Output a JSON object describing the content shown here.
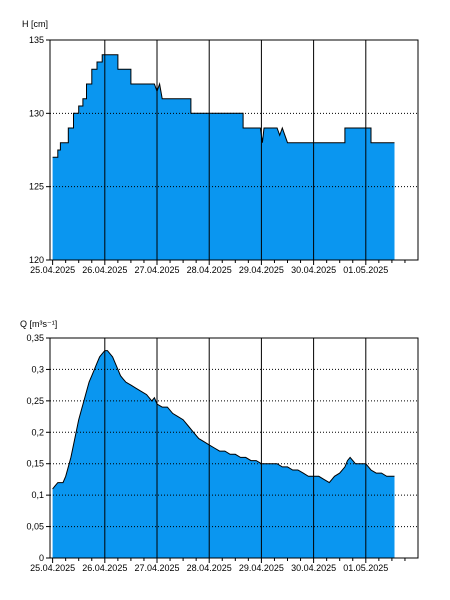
{
  "colors": {
    "fill": "#0a96f0",
    "line": "#000000",
    "grid": "#000000",
    "background": "#ffffff"
  },
  "chart_data": [
    {
      "type": "area",
      "title": "",
      "ylabel": "H [cm]",
      "xlabel": "",
      "x_tick_labels": [
        "25.04.2025",
        "26.04.2025",
        "27.04.2025",
        "28.04.2025",
        "29.04.2025",
        "30.04.2025",
        "01.05.2025"
      ],
      "x_range_days": [
        -0.05,
        7.0
      ],
      "ylim": [
        120,
        135
      ],
      "y_ticks": [
        120,
        125,
        130,
        135
      ],
      "y_tick_labels": [
        "120",
        "125",
        "130",
        "135"
      ],
      "grid": "vertical solid at days, horizontal dotted",
      "series": [
        {
          "x": [
            0,
            0.1,
            0.1,
            0.15,
            0.15,
            0.3,
            0.3,
            0.4,
            0.4,
            0.5,
            0.5,
            0.58,
            0.58,
            0.65,
            0.65,
            0.75,
            0.75,
            0.85,
            0.85,
            0.95,
            0.95,
            1.25,
            1.25,
            1.5,
            1.5,
            1.95,
            2.0,
            2.05,
            2.1,
            2.15,
            2.15,
            2.65,
            2.65,
            3.65,
            3.65,
            3.98,
            4.02,
            4.05,
            4.3,
            4.35,
            4.4,
            4.45,
            4.5,
            4.55,
            4.55,
            5.6,
            5.6,
            6.1,
            6.1,
            6.55
          ],
          "y": [
            127,
            127,
            127.5,
            127.5,
            128,
            128,
            129,
            129,
            130,
            130,
            130.5,
            130.5,
            131,
            131,
            132,
            132,
            133,
            133,
            133.5,
            133.5,
            134,
            134,
            133,
            133,
            132,
            132,
            131.5,
            132,
            131,
            131,
            131,
            131,
            130,
            130,
            129,
            129,
            128,
            129,
            129,
            128.5,
            129,
            128.5,
            128,
            128,
            128,
            128,
            129,
            129,
            128,
            128
          ]
        }
      ]
    },
    {
      "type": "area",
      "title": "",
      "ylabel": "Q [m³s⁻¹]",
      "xlabel": "",
      "x_tick_labels": [
        "25.04.2025",
        "26.04.2025",
        "27.04.2025",
        "28.04.2025",
        "29.04.2025",
        "30.04.2025",
        "01.05.2025"
      ],
      "x_range_days": [
        -0.05,
        7.0
      ],
      "ylim": [
        0,
        0.35
      ],
      "y_ticks": [
        0,
        0.05,
        0.1,
        0.15,
        0.2,
        0.25,
        0.3,
        0.35
      ],
      "y_tick_labels": [
        "0",
        "0,05",
        "0,1",
        "0,15",
        "0,2",
        "0,25",
        "0,3",
        "0,35"
      ],
      "grid": "vertical solid at days, horizontal dotted",
      "series": [
        {
          "x": [
            0,
            0.05,
            0.1,
            0.2,
            0.25,
            0.3,
            0.35,
            0.4,
            0.45,
            0.5,
            0.55,
            0.6,
            0.65,
            0.7,
            0.75,
            0.8,
            0.85,
            0.9,
            0.95,
            1.0,
            1.05,
            1.15,
            1.2,
            1.25,
            1.3,
            1.35,
            1.4,
            1.5,
            1.6,
            1.7,
            1.8,
            1.9,
            1.95,
            2.0,
            2.1,
            2.2,
            2.3,
            2.4,
            2.5,
            2.6,
            2.7,
            2.8,
            2.9,
            3.0,
            3.1,
            3.2,
            3.3,
            3.4,
            3.5,
            3.6,
            3.7,
            3.8,
            3.9,
            4.0,
            4.1,
            4.2,
            4.3,
            4.4,
            4.5,
            4.6,
            4.7,
            4.8,
            4.9,
            5.0,
            5.1,
            5.2,
            5.3,
            5.4,
            5.5,
            5.6,
            5.65,
            5.7,
            5.75,
            5.8,
            5.9,
            6.0,
            6.1,
            6.2,
            6.3,
            6.4,
            6.55
          ],
          "y": [
            0.11,
            0.115,
            0.12,
            0.12,
            0.13,
            0.145,
            0.16,
            0.18,
            0.2,
            0.22,
            0.235,
            0.25,
            0.265,
            0.28,
            0.29,
            0.3,
            0.31,
            0.32,
            0.325,
            0.33,
            0.33,
            0.32,
            0.31,
            0.3,
            0.29,
            0.285,
            0.28,
            0.275,
            0.27,
            0.265,
            0.26,
            0.25,
            0.255,
            0.245,
            0.24,
            0.24,
            0.23,
            0.225,
            0.22,
            0.21,
            0.2,
            0.19,
            0.185,
            0.18,
            0.175,
            0.17,
            0.17,
            0.165,
            0.165,
            0.16,
            0.16,
            0.155,
            0.155,
            0.15,
            0.15,
            0.15,
            0.15,
            0.145,
            0.145,
            0.14,
            0.14,
            0.135,
            0.13,
            0.13,
            0.13,
            0.125,
            0.12,
            0.13,
            0.135,
            0.145,
            0.155,
            0.16,
            0.155,
            0.15,
            0.15,
            0.15,
            0.14,
            0.135,
            0.135,
            0.13,
            0.13
          ]
        }
      ]
    }
  ]
}
